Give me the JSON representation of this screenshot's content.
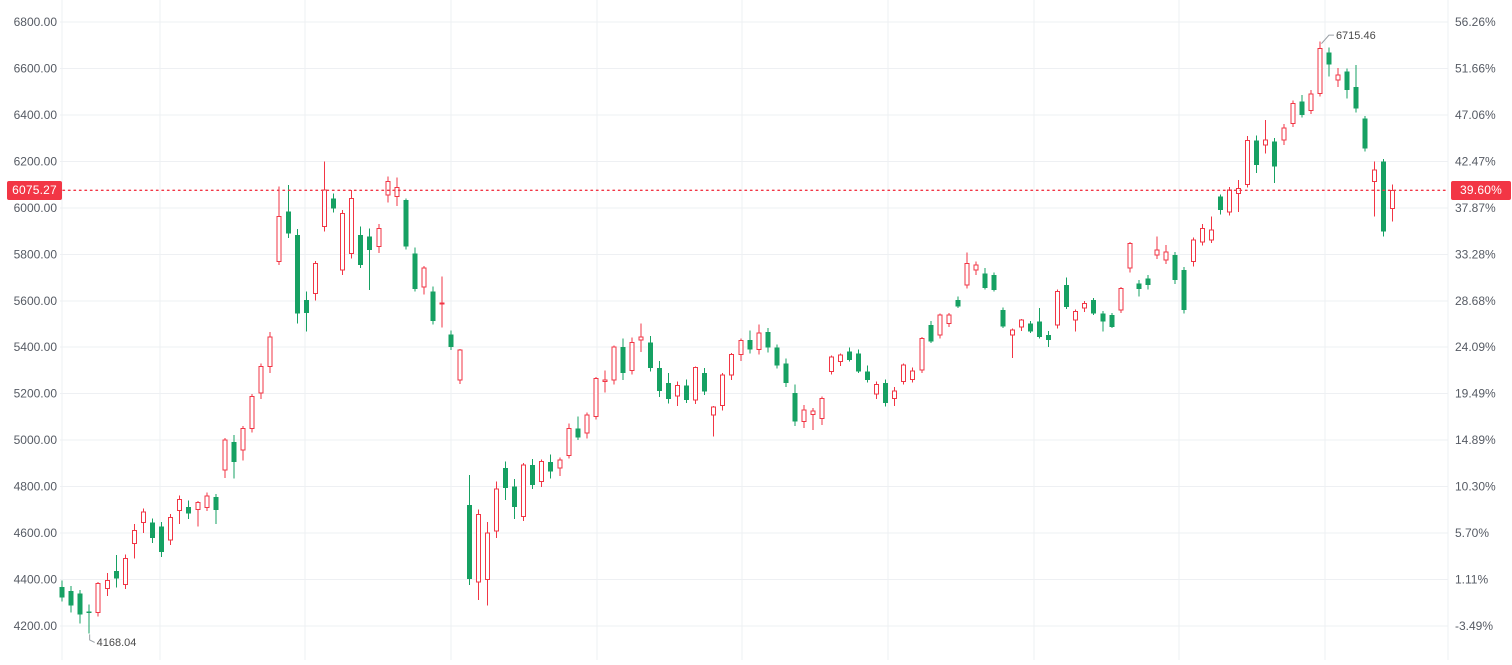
{
  "colors": {
    "up": "#f23645",
    "down": "#16a163",
    "grid": "#eef0f3",
    "axis_text": "#565b64",
    "label_bg": "#f23645",
    "label_text": "#ffffff",
    "annotation_text": "#4a4a4a",
    "annotation_line": "#9aa0a6",
    "dotted_line": "#f23645",
    "background": "#ffffff"
  },
  "chart_data": {
    "type": "candlestick",
    "style": "up-candles-hollow-red, down-candles-solid-green",
    "title": "",
    "xlabel": "",
    "ylabel": "",
    "grid": true,
    "ylim_price": [
      4054,
      6894
    ],
    "ylim_percent": [
      -6.84,
      58.42
    ],
    "current": {
      "price": 6075.27,
      "price_label": "6075.27",
      "percent_label": "39.60%"
    },
    "annotations": {
      "high_label": "6715.46",
      "high_value": 6715.46,
      "low_label": "4168.04",
      "low_value": 4168.04
    },
    "price_axis": {
      "side": "left",
      "tick_values": [
        6800,
        6600,
        6400,
        6200,
        6000,
        5800,
        5600,
        5400,
        5200,
        5000,
        4800,
        4600,
        4400,
        4200
      ],
      "tick_labels": [
        "6800.00",
        "6600.00",
        "6400.00",
        "6200.00",
        "6000.00",
        "5800.00",
        "5600.00",
        "5400.00",
        "5200.00",
        "5000.00",
        "4800.00",
        "4600.00",
        "4400.00",
        "4200.00"
      ]
    },
    "percent_axis": {
      "side": "right",
      "tick_labels": [
        "56.26%",
        "51.66%",
        "47.06%",
        "42.47%",
        "37.87%",
        "33.28%",
        "28.68%",
        "24.09%",
        "19.49%",
        "14.89%",
        "10.30%",
        "5.70%",
        "1.11%",
        "-3.49%"
      ]
    },
    "candles_format": [
      "open",
      "high",
      "low",
      "close"
    ],
    "candles": [
      [
        4368,
        4395,
        4305,
        4322
      ],
      [
        4350,
        4372,
        4258,
        4288
      ],
      [
        4340,
        4355,
        4210,
        4250
      ],
      [
        4262,
        4292,
        4168.04,
        4255
      ],
      [
        4258,
        4390,
        4240,
        4383
      ],
      [
        4362,
        4428,
        4330,
        4395
      ],
      [
        4436,
        4505,
        4365,
        4405
      ],
      [
        4378,
        4508,
        4360,
        4490
      ],
      [
        4556,
        4640,
        4490,
        4612
      ],
      [
        4645,
        4705,
        4600,
        4690
      ],
      [
        4645,
        4662,
        4558,
        4578
      ],
      [
        4628,
        4648,
        4498,
        4518
      ],
      [
        4570,
        4682,
        4548,
        4668
      ],
      [
        4698,
        4762,
        4640,
        4745
      ],
      [
        4712,
        4740,
        4660,
        4685
      ],
      [
        4702,
        4738,
        4628,
        4732
      ],
      [
        4710,
        4775,
        4695,
        4760
      ],
      [
        4755,
        4768,
        4640,
        4700
      ],
      [
        4871,
        5010,
        4838,
        5001
      ],
      [
        4993,
        5022,
        4835,
        4907
      ],
      [
        4957,
        5062,
        4912,
        5051
      ],
      [
        5051,
        5198,
        5032,
        5187
      ],
      [
        5202,
        5330,
        5178,
        5316
      ],
      [
        5316,
        5465,
        5290,
        5445
      ],
      [
        5768,
        6091,
        5754,
        5962
      ],
      [
        5984,
        6098,
        5870,
        5890
      ],
      [
        5883,
        5910,
        5503,
        5546
      ],
      [
        5603,
        5640,
        5467,
        5548
      ],
      [
        5632,
        5772,
        5602,
        5761
      ],
      [
        5919,
        6199,
        5898,
        6077
      ],
      [
        6041,
        6062,
        5980,
        5998
      ],
      [
        5733,
        5990,
        5710,
        5976
      ],
      [
        5804,
        6077,
        5782,
        6041
      ],
      [
        5883,
        5920,
        5740,
        5754
      ],
      [
        5876,
        5912,
        5646,
        5818
      ],
      [
        5833,
        5930,
        5805,
        5912
      ],
      [
        6056,
        6134,
        6022,
        6113
      ],
      [
        6048,
        6130,
        6008,
        6088
      ],
      [
        6034,
        6040,
        5820,
        5833
      ],
      [
        5804,
        5830,
        5640,
        5651
      ],
      [
        5660,
        5750,
        5628,
        5740
      ],
      [
        5640,
        5662,
        5498,
        5512
      ],
      [
        5589,
        5704,
        5486,
        5590
      ],
      [
        5455,
        5472,
        5388,
        5402
      ],
      [
        5259,
        5392,
        5242,
        5388
      ],
      [
        4721,
        4850,
        4377,
        4402
      ],
      [
        4390,
        4702,
        4312,
        4680
      ],
      [
        4400,
        4648,
        4288,
        4600
      ],
      [
        4610,
        4822,
        4578,
        4790
      ],
      [
        4880,
        4908,
        4742,
        4795
      ],
      [
        4800,
        4833,
        4660,
        4712
      ],
      [
        4671,
        4902,
        4652,
        4893
      ],
      [
        4893,
        4918,
        4790,
        4808
      ],
      [
        4821,
        4917,
        4798,
        4908
      ],
      [
        4907,
        4938,
        4836,
        4864
      ],
      [
        4880,
        4926,
        4846,
        4914
      ],
      [
        4935,
        5072,
        4920,
        5051
      ],
      [
        5051,
        5102,
        5000,
        5012
      ],
      [
        5030,
        5120,
        5008,
        5108
      ],
      [
        5101,
        5272,
        5088,
        5266
      ],
      [
        5252,
        5300,
        5205,
        5258
      ],
      [
        5260,
        5408,
        5240,
        5402
      ],
      [
        5402,
        5438,
        5260,
        5288
      ],
      [
        5300,
        5442,
        5282,
        5420
      ],
      [
        5432,
        5502,
        5380,
        5445
      ],
      [
        5420,
        5448,
        5296,
        5310
      ],
      [
        5310,
        5340,
        5186,
        5212
      ],
      [
        5245,
        5288,
        5158,
        5178
      ],
      [
        5190,
        5252,
        5148,
        5235
      ],
      [
        5235,
        5262,
        5160,
        5172
      ],
      [
        5172,
        5318,
        5155,
        5313
      ],
      [
        5290,
        5310,
        5195,
        5210
      ],
      [
        5109,
        5148,
        5015,
        5143
      ],
      [
        5150,
        5288,
        5128,
        5280
      ],
      [
        5280,
        5375,
        5258,
        5368
      ],
      [
        5368,
        5438,
        5340,
        5428
      ],
      [
        5432,
        5472,
        5372,
        5390
      ],
      [
        5390,
        5497,
        5368,
        5461
      ],
      [
        5465,
        5482,
        5378,
        5398
      ],
      [
        5398,
        5412,
        5308,
        5322
      ],
      [
        5330,
        5352,
        5228,
        5245
      ],
      [
        5202,
        5240,
        5060,
        5080
      ],
      [
        5080,
        5152,
        5052,
        5130
      ],
      [
        5110,
        5138,
        5044,
        5126
      ],
      [
        5094,
        5188,
        5065,
        5180
      ],
      [
        5295,
        5365,
        5282,
        5359
      ],
      [
        5338,
        5372,
        5320,
        5366
      ],
      [
        5381,
        5398,
        5338,
        5345
      ],
      [
        5374,
        5390,
        5288,
        5295
      ],
      [
        5295,
        5322,
        5248,
        5259
      ],
      [
        5198,
        5252,
        5178,
        5240
      ],
      [
        5245,
        5262,
        5144,
        5160
      ],
      [
        5180,
        5228,
        5148,
        5212
      ],
      [
        5252,
        5330,
        5240,
        5323
      ],
      [
        5262,
        5312,
        5248,
        5298
      ],
      [
        5302,
        5445,
        5290,
        5438
      ],
      [
        5496,
        5512,
        5418,
        5424
      ],
      [
        5453,
        5545,
        5438,
        5539
      ],
      [
        5503,
        5548,
        5488,
        5539
      ],
      [
        5603,
        5618,
        5568,
        5575
      ],
      [
        5668,
        5807,
        5652,
        5761
      ],
      [
        5732,
        5768,
        5712,
        5754
      ],
      [
        5718,
        5740,
        5648,
        5654
      ],
      [
        5711,
        5722,
        5640,
        5646
      ],
      [
        5560,
        5572,
        5482,
        5490
      ],
      [
        5452,
        5480,
        5354,
        5474
      ],
      [
        5488,
        5522,
        5470,
        5517
      ],
      [
        5503,
        5512,
        5462,
        5467
      ],
      [
        5510,
        5568,
        5438,
        5445
      ],
      [
        5452,
        5470,
        5402,
        5431
      ],
      [
        5496,
        5648,
        5480,
        5639
      ],
      [
        5668,
        5700,
        5565,
        5574
      ],
      [
        5517,
        5562,
        5467,
        5553
      ],
      [
        5568,
        5598,
        5552,
        5589
      ],
      [
        5603,
        5612,
        5538,
        5546
      ],
      [
        5546,
        5556,
        5467,
        5510
      ],
      [
        5539,
        5548,
        5482,
        5488
      ],
      [
        5560,
        5660,
        5548,
        5653
      ],
      [
        5740,
        5852,
        5722,
        5847
      ],
      [
        5675,
        5690,
        5618,
        5650
      ],
      [
        5696,
        5710,
        5648,
        5668
      ],
      [
        5797,
        5876,
        5780,
        5818
      ],
      [
        5775,
        5840,
        5758,
        5811
      ],
      [
        5797,
        5810,
        5672,
        5689
      ],
      [
        5732,
        5745,
        5546,
        5560
      ],
      [
        5768,
        5872,
        5748,
        5861
      ],
      [
        5854,
        5930,
        5838,
        5911
      ],
      [
        5861,
        5962,
        5848,
        5904
      ],
      [
        6048,
        6058,
        5972,
        5990
      ],
      [
        5983,
        6090,
        5968,
        6077
      ],
      [
        6062,
        6120,
        5983,
        6084
      ],
      [
        6100,
        6310,
        6088,
        6290
      ],
      [
        6290,
        6312,
        6150,
        6185
      ],
      [
        6271,
        6378,
        6235,
        6292
      ],
      [
        6285,
        6300,
        6106,
        6177
      ],
      [
        6292,
        6360,
        6270,
        6343
      ],
      [
        6364,
        6462,
        6348,
        6450
      ],
      [
        6457,
        6486,
        6388,
        6400
      ],
      [
        6420,
        6508,
        6405,
        6490
      ],
      [
        6493,
        6715.46,
        6480,
        6687
      ],
      [
        6668,
        6690,
        6565,
        6617
      ],
      [
        6550,
        6601,
        6520,
        6572
      ],
      [
        6586,
        6600,
        6470,
        6507
      ],
      [
        6520,
        6615,
        6410,
        6428
      ],
      [
        6385,
        6395,
        6242,
        6256
      ],
      [
        6113,
        6199,
        5962,
        6163
      ],
      [
        6199,
        6210,
        5876,
        5898
      ],
      [
        5998,
        6100,
        5941,
        6075.27
      ]
    ]
  }
}
